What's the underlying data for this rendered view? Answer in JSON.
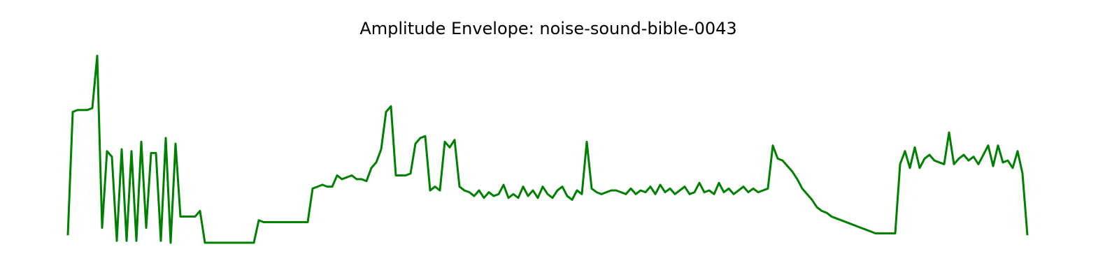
{
  "chart_data": {
    "type": "line",
    "title": "Amplitude Envelope: noise-sound-bible-0043",
    "color": "#008000",
    "ylim": [
      0,
      1
    ],
    "values": [
      0.04,
      0.7,
      0.71,
      0.71,
      0.71,
      0.72,
      1.0,
      0.08,
      0.49,
      0.46,
      0.01,
      0.5,
      0.01,
      0.49,
      0.01,
      0.54,
      0.08,
      0.48,
      0.48,
      0.01,
      0.56,
      0.0,
      0.53,
      0.14,
      0.14,
      0.14,
      0.14,
      0.17,
      0.0,
      0.0,
      0.0,
      0.0,
      0.0,
      0.0,
      0.0,
      0.0,
      0.0,
      0.0,
      0.0,
      0.12,
      0.11,
      0.11,
      0.11,
      0.11,
      0.11,
      0.11,
      0.11,
      0.11,
      0.11,
      0.11,
      0.29,
      0.3,
      0.31,
      0.3,
      0.3,
      0.36,
      0.34,
      0.35,
      0.36,
      0.34,
      0.34,
      0.33,
      0.4,
      0.43,
      0.5,
      0.7,
      0.73,
      0.36,
      0.36,
      0.36,
      0.37,
      0.53,
      0.56,
      0.57,
      0.28,
      0.3,
      0.28,
      0.54,
      0.51,
      0.55,
      0.3,
      0.28,
      0.27,
      0.25,
      0.28,
      0.24,
      0.27,
      0.25,
      0.26,
      0.31,
      0.24,
      0.26,
      0.24,
      0.3,
      0.25,
      0.28,
      0.24,
      0.3,
      0.26,
      0.24,
      0.28,
      0.3,
      0.25,
      0.23,
      0.28,
      0.26,
      0.54,
      0.29,
      0.27,
      0.26,
      0.27,
      0.28,
      0.28,
      0.27,
      0.26,
      0.29,
      0.26,
      0.28,
      0.27,
      0.3,
      0.26,
      0.31,
      0.27,
      0.29,
      0.26,
      0.28,
      0.3,
      0.26,
      0.27,
      0.32,
      0.27,
      0.28,
      0.26,
      0.32,
      0.27,
      0.29,
      0.26,
      0.28,
      0.3,
      0.27,
      0.29,
      0.27,
      0.28,
      0.29,
      0.52,
      0.45,
      0.44,
      0.41,
      0.38,
      0.34,
      0.29,
      0.26,
      0.23,
      0.19,
      0.17,
      0.16,
      0.14,
      0.13,
      0.12,
      0.11,
      0.1,
      0.09,
      0.08,
      0.07,
      0.06,
      0.05,
      0.05,
      0.05,
      0.05,
      0.05,
      0.42,
      0.49,
      0.4,
      0.51,
      0.4,
      0.45,
      0.47,
      0.44,
      0.43,
      0.42,
      0.59,
      0.42,
      0.45,
      0.47,
      0.44,
      0.46,
      0.42,
      0.47,
      0.52,
      0.41,
      0.52,
      0.43,
      0.44,
      0.4,
      0.49,
      0.37,
      0.04
    ]
  }
}
